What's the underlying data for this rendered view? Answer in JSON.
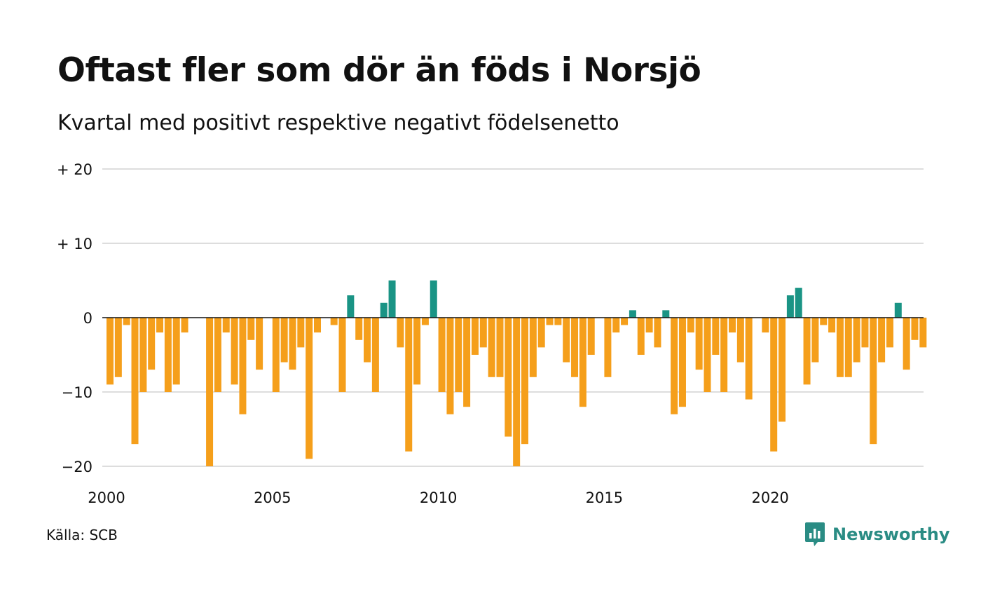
{
  "title": "Oftast fler som dör än föds i Norsjö",
  "subtitle": "Kvartal med positivt respektive negativt födelsenetto",
  "source": "Källa: SCB",
  "brand": {
    "name": "Newsworthy",
    "icon": "newsworthy-logo-icon",
    "color": "#2a8c84"
  },
  "colors": {
    "positive": "#1a9485",
    "negative": "#f59f1b",
    "grid": "#dddddd",
    "zero_line": "#111111"
  },
  "chart_data": {
    "type": "bar",
    "title": "Oftast fler som dör än föds i Norsjö",
    "subtitle": "Kvartal med positivt respektive negativt födelsenetto",
    "xlabel": "",
    "ylabel": "",
    "ylim": [
      -20,
      20
    ],
    "xlim": [
      2000,
      2024.75
    ],
    "grid": true,
    "legend": "none",
    "y_ticks": [
      {
        "value": 20,
        "label": "+ 20"
      },
      {
        "value": 10,
        "label": "+ 10"
      },
      {
        "value": 0,
        "label": "0"
      },
      {
        "value": -10,
        "label": "−10"
      },
      {
        "value": -20,
        "label": "−20"
      }
    ],
    "x_ticks": [
      {
        "value": 2000,
        "label": "2000"
      },
      {
        "value": 2005,
        "label": "2005"
      },
      {
        "value": 2010,
        "label": "2010"
      },
      {
        "value": 2015,
        "label": "2015"
      },
      {
        "value": 2020,
        "label": "2020"
      }
    ],
    "categories": [
      "2000 Q1",
      "2000 Q2",
      "2000 Q3",
      "2000 Q4",
      "2001 Q1",
      "2001 Q2",
      "2001 Q3",
      "2001 Q4",
      "2002 Q1",
      "2002 Q2",
      "2002 Q3",
      "2002 Q4",
      "2003 Q1",
      "2003 Q2",
      "2003 Q3",
      "2003 Q4",
      "2004 Q1",
      "2004 Q2",
      "2004 Q3",
      "2004 Q4",
      "2005 Q1",
      "2005 Q2",
      "2005 Q3",
      "2005 Q4",
      "2006 Q1",
      "2006 Q2",
      "2006 Q3",
      "2006 Q4",
      "2007 Q1",
      "2007 Q2",
      "2007 Q3",
      "2007 Q4",
      "2008 Q1",
      "2008 Q2",
      "2008 Q3",
      "2008 Q4",
      "2009 Q1",
      "2009 Q2",
      "2009 Q3",
      "2009 Q4",
      "2010 Q1",
      "2010 Q2",
      "2010 Q3",
      "2010 Q4",
      "2011 Q1",
      "2011 Q2",
      "2011 Q3",
      "2011 Q4",
      "2012 Q1",
      "2012 Q2",
      "2012 Q3",
      "2012 Q4",
      "2013 Q1",
      "2013 Q2",
      "2013 Q3",
      "2013 Q4",
      "2014 Q1",
      "2014 Q2",
      "2014 Q3",
      "2014 Q4",
      "2015 Q1",
      "2015 Q2",
      "2015 Q3",
      "2015 Q4",
      "2016 Q1",
      "2016 Q2",
      "2016 Q3",
      "2016 Q4",
      "2017 Q1",
      "2017 Q2",
      "2017 Q3",
      "2017 Q4",
      "2018 Q1",
      "2018 Q2",
      "2018 Q3",
      "2018 Q4",
      "2019 Q1",
      "2019 Q2",
      "2019 Q3",
      "2019 Q4",
      "2020 Q1",
      "2020 Q2",
      "2020 Q3",
      "2020 Q4",
      "2021 Q1",
      "2021 Q2",
      "2021 Q3",
      "2021 Q4",
      "2022 Q1",
      "2022 Q2",
      "2022 Q3",
      "2022 Q4",
      "2023 Q1",
      "2023 Q2",
      "2023 Q3",
      "2023 Q4",
      "2024 Q1",
      "2024 Q2",
      "2024 Q3",
      "2024 Q4"
    ],
    "values": [
      -9,
      -8,
      -1,
      -17,
      -10,
      -7,
      -2,
      -10,
      -9,
      -2,
      null,
      null,
      -20,
      -10,
      -2,
      -9,
      -13,
      -3,
      -7,
      null,
      -10,
      -6,
      -7,
      -4,
      -19,
      -2,
      null,
      -1,
      -10,
      3,
      -3,
      -6,
      -10,
      2,
      5,
      -4,
      -18,
      -9,
      -1,
      5,
      -10,
      -13,
      -10,
      -12,
      -5,
      -4,
      -8,
      -8,
      -16,
      -20,
      -17,
      -8,
      -4,
      -1,
      -1,
      -6,
      -8,
      -12,
      -5,
      null,
      -8,
      -2,
      -1,
      1,
      -5,
      -2,
      -4,
      1,
      -13,
      -12,
      -2,
      -7,
      -10,
      -5,
      -10,
      -2,
      -6,
      -11,
      null,
      -2,
      -18,
      -14,
      3,
      4,
      -9,
      -6,
      -1,
      -2,
      -8,
      -8,
      -6,
      -4,
      -17,
      -6,
      -4,
      2,
      -7,
      -3,
      -4,
      null
    ]
  }
}
